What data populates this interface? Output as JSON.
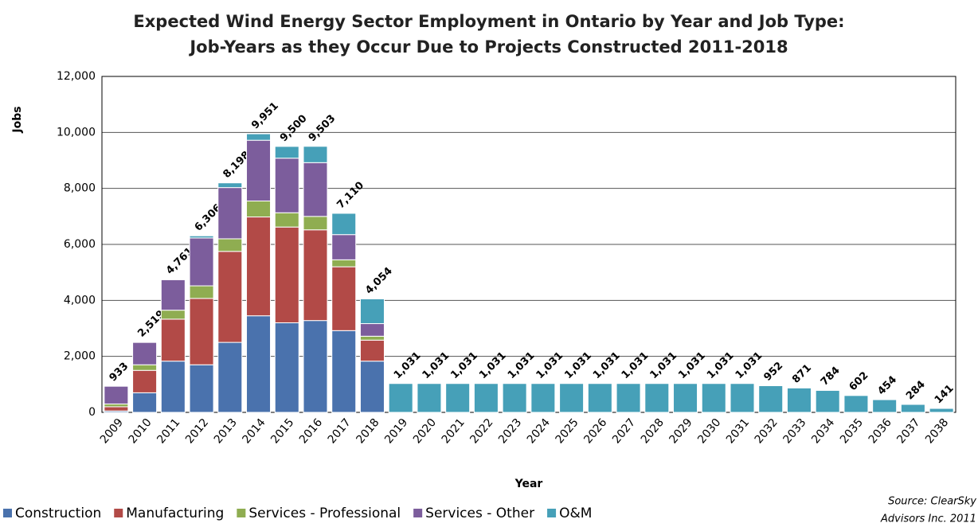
{
  "chart_data": {
    "type": "stacked_bar",
    "title": [
      "Expected Wind Energy Sector Employment in Ontario by Year and Job Type:",
      "Job-Years as they Occur Due to Projects Constructed  2011-2018"
    ],
    "x_label": "Year",
    "y_label": "Jobs",
    "source": [
      "Source: ClearSky",
      "Advisors Inc. 2011"
    ],
    "categories": [
      "2009",
      "2010",
      "2011",
      "2012",
      "2013",
      "2014",
      "2015",
      "2016",
      "2017",
      "2018",
      "2019",
      "2020",
      "2021",
      "2022",
      "2023",
      "2024",
      "2025",
      "2026",
      "2027",
      "2028",
      "2029",
      "2030",
      "2031",
      "2032",
      "2033",
      "2034",
      "2035",
      "2036",
      "2037",
      "2038"
    ],
    "series": [
      {
        "name": "Construction",
        "color": "#4a72ad",
        "values": [
          50,
          700,
          1830,
          1700,
          2500,
          3450,
          3200,
          3280,
          2920,
          1830,
          0,
          0,
          0,
          0,
          0,
          0,
          0,
          0,
          0,
          0,
          0,
          0,
          0,
          0,
          0,
          0,
          0,
          0,
          0,
          0
        ]
      },
      {
        "name": "Manufacturing",
        "color": "#b24a47",
        "values": [
          150,
          800,
          1500,
          2370,
          3250,
          3530,
          3420,
          3240,
          2280,
          750,
          0,
          0,
          0,
          0,
          0,
          0,
          0,
          0,
          0,
          0,
          0,
          0,
          0,
          0,
          0,
          0,
          0,
          0,
          0,
          0
        ]
      },
      {
        "name": "Services - Professional",
        "color": "#8fad51",
        "values": [
          100,
          200,
          320,
          450,
          450,
          570,
          510,
          480,
          250,
          140,
          0,
          0,
          0,
          0,
          0,
          0,
          0,
          0,
          0,
          0,
          0,
          0,
          0,
          0,
          0,
          0,
          0,
          0,
          0,
          0
        ]
      },
      {
        "name": "Services - Other",
        "color": "#7c5d9c",
        "values": [
          633,
          800,
          1090,
          1710,
          1830,
          2170,
          1950,
          1920,
          900,
          450,
          0,
          0,
          0,
          0,
          0,
          0,
          0,
          0,
          0,
          0,
          0,
          0,
          0,
          0,
          0,
          0,
          0,
          0,
          0,
          0
        ]
      },
      {
        "name": "O&M",
        "color": "#46a0b8",
        "values": [
          0,
          19,
          21,
          76,
          168,
          231,
          420,
          583,
          760,
          884,
          1031,
          1031,
          1031,
          1031,
          1031,
          1031,
          1031,
          1031,
          1031,
          1031,
          1031,
          1031,
          1031,
          952,
          871,
          784,
          602,
          454,
          284,
          141
        ]
      }
    ],
    "totals": [
      933,
      2519,
      4761,
      6306,
      8198,
      9951,
      9500,
      9503,
      7110,
      4054,
      1031,
      1031,
      1031,
      1031,
      1031,
      1031,
      1031,
      1031,
      1031,
      1031,
      1031,
      1031,
      1031,
      952,
      871,
      784,
      602,
      454,
      284,
      141
    ],
    "total_labels": [
      "933",
      "2,519",
      "4,761",
      "6,306",
      "8,198",
      "9,951",
      "9,500",
      "9,503",
      "7,110",
      "4,054",
      "1,031",
      "1,031",
      "1,031",
      "1,031",
      "1,031",
      "1,031",
      "1,031",
      "1,031",
      "1,031",
      "1,031",
      "1,031",
      "1,031",
      "1,031",
      "952",
      "871",
      "784",
      "602",
      "454",
      "284",
      "141"
    ],
    "ylim": [
      0,
      12000
    ],
    "yticks": [
      0,
      {
        "value": 2000,
        "label": "2,000"
      },
      {
        "value": 4000,
        "label": "4,000"
      },
      {
        "value": 6000,
        "label": "6,000"
      },
      {
        "value": 8000,
        "label": "8,000"
      },
      {
        "value": 10000,
        "label": "10,000"
      },
      {
        "value": 12000,
        "label": "12,000"
      }
    ],
    "grid": true,
    "legend": "bottom"
  }
}
